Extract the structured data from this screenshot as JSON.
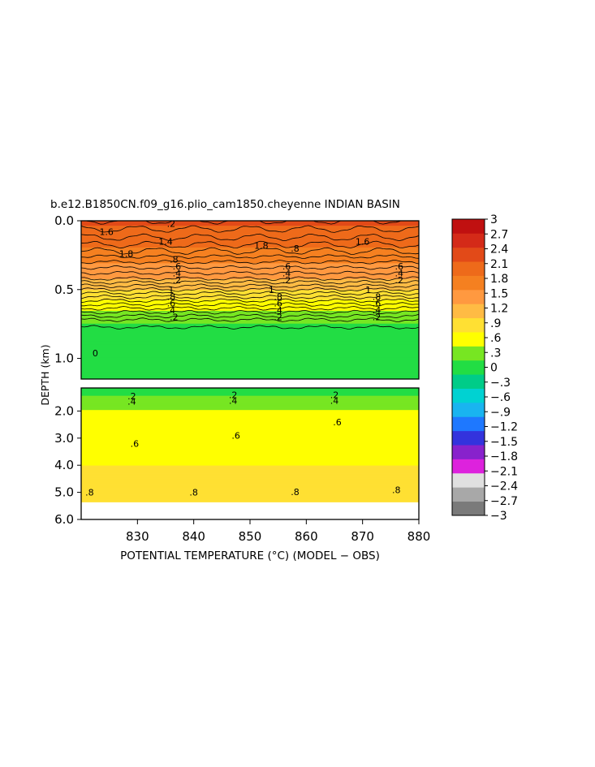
{
  "chart_data": {
    "type": "heatmap",
    "title": "b.e12.B1850CN.f09_g16.plio_cam1850.cheyenne INDIAN BASIN",
    "xlabel": "POTENTIAL TEMPERATURE (°C) (MODEL − OBS)",
    "ylabel": "DEPTH (km)",
    "xlim": [
      820,
      880
    ],
    "x_ticks": [
      830,
      840,
      850,
      860,
      870,
      880
    ],
    "upper_panel": {
      "ylim": [
        0.0,
        1.15
      ],
      "y_ticks": [
        0.0,
        0.5,
        1.0
      ],
      "y_tick_labels": [
        "0.0",
        "0.5",
        "1.0"
      ]
    },
    "lower_panel": {
      "ylim": [
        1.15,
        6.0
      ],
      "y_ticks": [
        2.0,
        3.0,
        4.0,
        5.0,
        6.0
      ],
      "y_tick_labels": [
        "2.0",
        "3.0",
        "4.0",
        "5.0",
        "6.0"
      ],
      "data_bottom": 5.35
    },
    "field_profile": {
      "depth": [
        0.0,
        0.12,
        0.2,
        0.3,
        0.42,
        0.5,
        0.58,
        0.65,
        0.72,
        0.8,
        1.15,
        1.3,
        1.6,
        1.9,
        2.3,
        3.0,
        3.8,
        4.5,
        5.35
      ],
      "value": [
        2.2,
        2.0,
        1.85,
        1.6,
        1.3,
        1.0,
        0.7,
        0.45,
        0.2,
        0.05,
        0.05,
        0.1,
        0.2,
        0.4,
        0.55,
        0.6,
        0.7,
        0.75,
        0.8
      ]
    },
    "contour_labels": [
      {
        "text": "1.6",
        "x": 824.5,
        "depth": 0.08
      },
      {
        "text": "1.4",
        "x": 835.0,
        "depth": 0.15
      },
      {
        "text": ".2",
        "x": 836.0,
        "depth": 0.02
      },
      {
        "text": "1.8",
        "x": 852.0,
        "depth": 0.18
      },
      {
        "text": ".8",
        "x": 858.0,
        "depth": 0.2
      },
      {
        "text": "1.6",
        "x": 870.0,
        "depth": 0.15
      },
      {
        "text": "1.8",
        "x": 828.0,
        "depth": 0.24
      },
      {
        "text": ".8",
        "x": 836.5,
        "depth": 0.28
      },
      {
        "text": ".6",
        "x": 837.0,
        "depth": 0.33
      },
      {
        "text": ".4",
        "x": 837.0,
        "depth": 0.38
      },
      {
        "text": ".2",
        "x": 837.0,
        "depth": 0.43
      },
      {
        "text": "1",
        "x": 836.0,
        "depth": 0.5
      },
      {
        "text": ".8",
        "x": 836.0,
        "depth": 0.55
      },
      {
        "text": ".6",
        "x": 836.0,
        "depth": 0.6
      },
      {
        "text": ".4",
        "x": 836.0,
        "depth": 0.65
      },
      {
        "text": ".2",
        "x": 836.5,
        "depth": 0.7
      },
      {
        "text": ".6",
        "x": 856.5,
        "depth": 0.33
      },
      {
        "text": ".4",
        "x": 856.5,
        "depth": 0.38
      },
      {
        "text": ".2",
        "x": 856.5,
        "depth": 0.43
      },
      {
        "text": "1",
        "x": 853.8,
        "depth": 0.5
      },
      {
        "text": ".8",
        "x": 855.0,
        "depth": 0.55
      },
      {
        "text": ".6",
        "x": 855.0,
        "depth": 0.6
      },
      {
        "text": ".4",
        "x": 855.0,
        "depth": 0.65
      },
      {
        "text": ".2",
        "x": 855.0,
        "depth": 0.7
      },
      {
        "text": ".6",
        "x": 876.5,
        "depth": 0.33
      },
      {
        "text": ".4",
        "x": 876.5,
        "depth": 0.38
      },
      {
        "text": ".2",
        "x": 876.5,
        "depth": 0.43
      },
      {
        "text": "1",
        "x": 871.0,
        "depth": 0.5
      },
      {
        "text": ".8",
        "x": 872.5,
        "depth": 0.55
      },
      {
        "text": ".6",
        "x": 872.5,
        "depth": 0.6
      },
      {
        "text": ".4",
        "x": 872.5,
        "depth": 0.65
      },
      {
        "text": ".2",
        "x": 872.5,
        "depth": 0.7
      },
      {
        "text": "0",
        "x": 822.5,
        "depth": 0.96
      },
      {
        "text": ".2",
        "x": 829.0,
        "depth": 1.45
      },
      {
        "text": ".4",
        "x": 829.0,
        "depth": 1.65
      },
      {
        "text": ".2",
        "x": 847.0,
        "depth": 1.4
      },
      {
        "text": ".4",
        "x": 847.0,
        "depth": 1.62
      },
      {
        "text": ".2",
        "x": 865.0,
        "depth": 1.4
      },
      {
        "text": ".4",
        "x": 865.0,
        "depth": 1.62
      },
      {
        "text": ".6",
        "x": 865.5,
        "depth": 2.4
      },
      {
        "text": ".6",
        "x": 847.5,
        "depth": 2.9
      },
      {
        "text": ".6",
        "x": 829.5,
        "depth": 3.2
      },
      {
        "text": ".8",
        "x": 821.5,
        "depth": 5.0
      },
      {
        "text": ".8",
        "x": 840.0,
        "depth": 5.0
      },
      {
        "text": ".8",
        "x": 858.0,
        "depth": 4.98
      },
      {
        "text": ".8",
        "x": 876.0,
        "depth": 4.9
      }
    ],
    "colorbar": {
      "min": -3,
      "max": 3,
      "tick_values": [
        3,
        2.7,
        2.4,
        2.1,
        1.8,
        1.5,
        1.2,
        0.9,
        0.6,
        0.3,
        0,
        -0.3,
        -0.6,
        -0.9,
        -1.2,
        -1.5,
        -1.8,
        -2.1,
        -2.4,
        -2.7,
        -3
      ],
      "tick_labels": [
        "3",
        "2.7",
        "2.4",
        "2.1",
        "1.8",
        "1.5",
        "1.2",
        ".9",
        ".6",
        ".3",
        "0",
        "−.3",
        "−.6",
        "−.9",
        "−1.2",
        "−1.5",
        "−1.8",
        "−2.1",
        "−2.4",
        "−2.7",
        "−3"
      ],
      "colors": [
        "#7a7a7a",
        "#a8a8a8",
        "#e0e0e0",
        "#dd22dd",
        "#8822cc",
        "#3333dd",
        "#1e78ff",
        "#19b4f0",
        "#00d2d2",
        "#00cc88",
        "#22dd44",
        "#77e622",
        "#ffff00",
        "#ffe033",
        "#ffbb44",
        "#ff9940",
        "#f58020",
        "#ee6a1a",
        "#e24a18",
        "#d42a18",
        "#c01010"
      ]
    },
    "grid": false,
    "legend": "right"
  }
}
